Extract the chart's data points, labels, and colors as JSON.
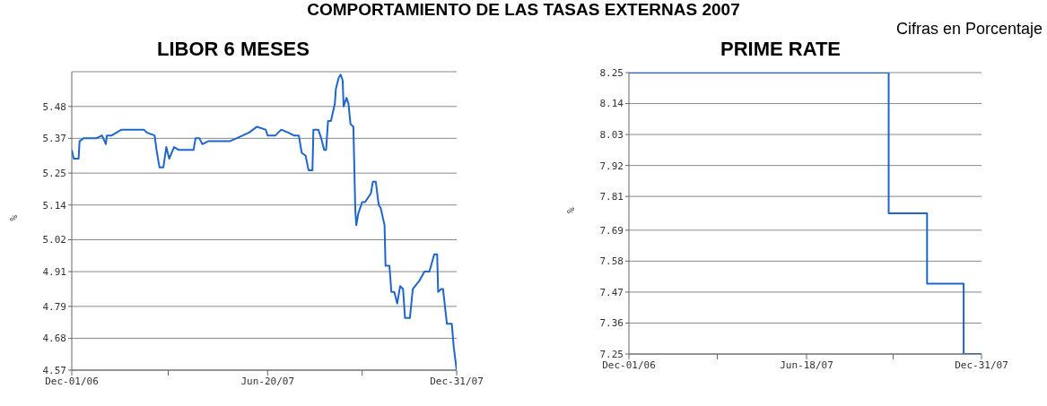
{
  "chart_data": [
    {
      "type": "line",
      "title": "LIBOR 6 MESES",
      "ylabel": "%",
      "annotations": [
        "COMPORTAMIENTO DE LAS TASAS EXTERNAS 2007"
      ],
      "grid": "y",
      "xlim": [
        "2006-12-01",
        "2007-12-31"
      ],
      "xticks": [
        {
          "value": "2006-12-01",
          "label": "Dec-01/06"
        },
        {
          "value": "2007-03-10",
          "label": null
        },
        {
          "value": "2007-06-20",
          "label": "Jun-20/07"
        },
        {
          "value": "2007-09-25",
          "label": null
        },
        {
          "value": "2007-12-31",
          "label": "Dec-31/07"
        }
      ],
      "ylim": [
        4.57,
        5.6
      ],
      "yticks": [
        4.57,
        4.68,
        4.79,
        4.91,
        5.02,
        5.14,
        5.25,
        5.37,
        5.48
      ],
      "series": [
        {
          "color": "#1f66cc",
          "x": [
            "2006-12-01",
            "2006-12-03",
            "2006-12-08",
            "2006-12-09",
            "2006-12-13",
            "2006-12-19",
            "2006-12-26",
            "2007-01-01",
            "2007-01-05",
            "2007-01-06",
            "2007-01-11",
            "2007-01-21",
            "2007-01-28",
            "2007-02-13",
            "2007-02-16",
            "2007-02-24",
            "2007-02-26",
            "2007-03-01",
            "2007-03-05",
            "2007-03-08",
            "2007-03-11",
            "2007-03-16",
            "2007-03-21",
            "2007-03-27",
            "2007-04-05",
            "2007-04-07",
            "2007-04-11",
            "2007-04-14",
            "2007-04-20",
            "2007-05-06",
            "2007-05-12",
            "2007-05-19",
            "2007-06-01",
            "2007-06-09",
            "2007-06-18",
            "2007-06-20",
            "2007-06-28",
            "2007-07-04",
            "2007-07-11",
            "2007-07-17",
            "2007-07-22",
            "2007-07-25",
            "2007-07-29",
            "2007-08-01",
            "2007-08-05",
            "2007-08-06",
            "2007-08-11",
            "2007-08-14",
            "2007-08-17",
            "2007-08-19",
            "2007-08-21",
            "2007-08-24",
            "2007-08-28",
            "2007-08-29",
            "2007-09-01",
            "2007-09-03",
            "2007-09-05",
            "2007-09-06",
            "2007-09-09",
            "2007-09-11",
            "2007-09-13",
            "2007-09-16",
            "2007-09-18",
            "2007-09-19",
            "2007-09-21",
            "2007-09-25",
            "2007-09-28",
            "2007-10-04",
            "2007-10-06",
            "2007-10-09",
            "2007-10-12",
            "2007-10-14",
            "2007-10-18",
            "2007-10-19",
            "2007-10-23",
            "2007-10-25",
            "2007-10-28",
            "2007-10-31",
            "2007-11-03",
            "2007-11-06",
            "2007-11-08",
            "2007-11-13",
            "2007-11-16",
            "2007-11-23",
            "2007-11-28",
            "2007-12-03",
            "2007-12-08",
            "2007-12-11",
            "2007-12-12",
            "2007-12-15",
            "2007-12-17",
            "2007-12-19",
            "2007-12-21",
            "2007-12-26",
            "2007-12-28",
            "2007-12-31"
          ],
          "values": [
            5.33,
            5.3,
            5.3,
            5.36,
            5.37,
            5.37,
            5.37,
            5.38,
            5.35,
            5.38,
            5.38,
            5.4,
            5.4,
            5.4,
            5.39,
            5.38,
            5.33,
            5.27,
            5.27,
            5.34,
            5.3,
            5.34,
            5.33,
            5.33,
            5.33,
            5.37,
            5.37,
            5.35,
            5.36,
            5.36,
            5.36,
            5.37,
            5.39,
            5.41,
            5.4,
            5.38,
            5.38,
            5.4,
            5.39,
            5.38,
            5.38,
            5.32,
            5.31,
            5.26,
            5.26,
            5.4,
            5.4,
            5.37,
            5.33,
            5.33,
            5.43,
            5.43,
            5.49,
            5.54,
            5.58,
            5.59,
            5.57,
            5.48,
            5.51,
            5.49,
            5.42,
            5.41,
            5.12,
            5.07,
            5.11,
            5.15,
            5.15,
            5.18,
            5.22,
            5.22,
            5.14,
            5.13,
            5.07,
            4.93,
            4.93,
            4.84,
            4.84,
            4.8,
            4.86,
            4.85,
            4.75,
            4.75,
            4.85,
            4.88,
            4.91,
            4.91,
            4.97,
            4.97,
            4.84,
            4.85,
            4.85,
            4.79,
            4.73,
            4.73,
            4.65,
            4.57
          ]
        }
      ]
    },
    {
      "type": "step",
      "title": "PRIME RATE",
      "ylabel": "%",
      "annotations": [
        "Cifras en Porcentaje"
      ],
      "grid": "y",
      "xlim": [
        "2006-12-01",
        "2007-12-31"
      ],
      "xticks": [
        {
          "value": "2006-12-01",
          "label": "Dec-01/06"
        },
        {
          "value": "2007-03-10",
          "label": null
        },
        {
          "value": "2007-06-18",
          "label": "Jun-18/07"
        },
        {
          "value": "2007-09-23",
          "label": null
        },
        {
          "value": "2007-12-31",
          "label": "Dec-31/07"
        }
      ],
      "ylim": [
        7.25,
        8.25
      ],
      "yticks": [
        7.25,
        7.36,
        7.47,
        7.58,
        7.69,
        7.81,
        7.92,
        8.03,
        8.14,
        8.25
      ],
      "series": [
        {
          "color": "#1f66cc",
          "x": [
            "2006-12-01",
            "2007-09-18",
            "2007-10-31",
            "2007-12-11",
            "2007-12-31"
          ],
          "values": [
            8.25,
            7.75,
            7.5,
            7.25,
            7.25
          ]
        }
      ]
    }
  ]
}
